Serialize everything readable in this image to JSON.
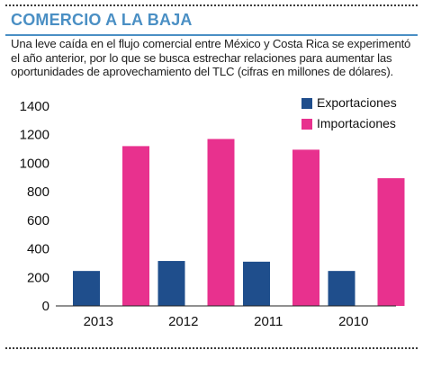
{
  "header": {
    "title": "COMERCIO A LA BAJA",
    "subtitle": "Una leve caída en el flujo comercial entre México y Costa Rica se experimentó el año anterior, por lo que se busca estrechar relaciones para aumentar las oportunidades de aprovechamiento del TLC (cifras en millones de dólares)."
  },
  "colors": {
    "title": "#4a8fc4",
    "exportaciones": "#1f4e8c",
    "importaciones": "#e8318e"
  },
  "chart_data": {
    "type": "bar",
    "categories": [
      "2013",
      "2012",
      "2011",
      "2010"
    ],
    "series": [
      {
        "name": "Exportaciones",
        "values": [
          245,
          315,
          310,
          245
        ]
      },
      {
        "name": "Importaciones",
        "values": [
          1120,
          1170,
          1095,
          895
        ]
      }
    ],
    "ylim": [
      0,
      1400
    ],
    "yticks": [
      0,
      200,
      400,
      600,
      800,
      1000,
      1200,
      1400
    ],
    "grid": false,
    "legend": "top-right"
  }
}
